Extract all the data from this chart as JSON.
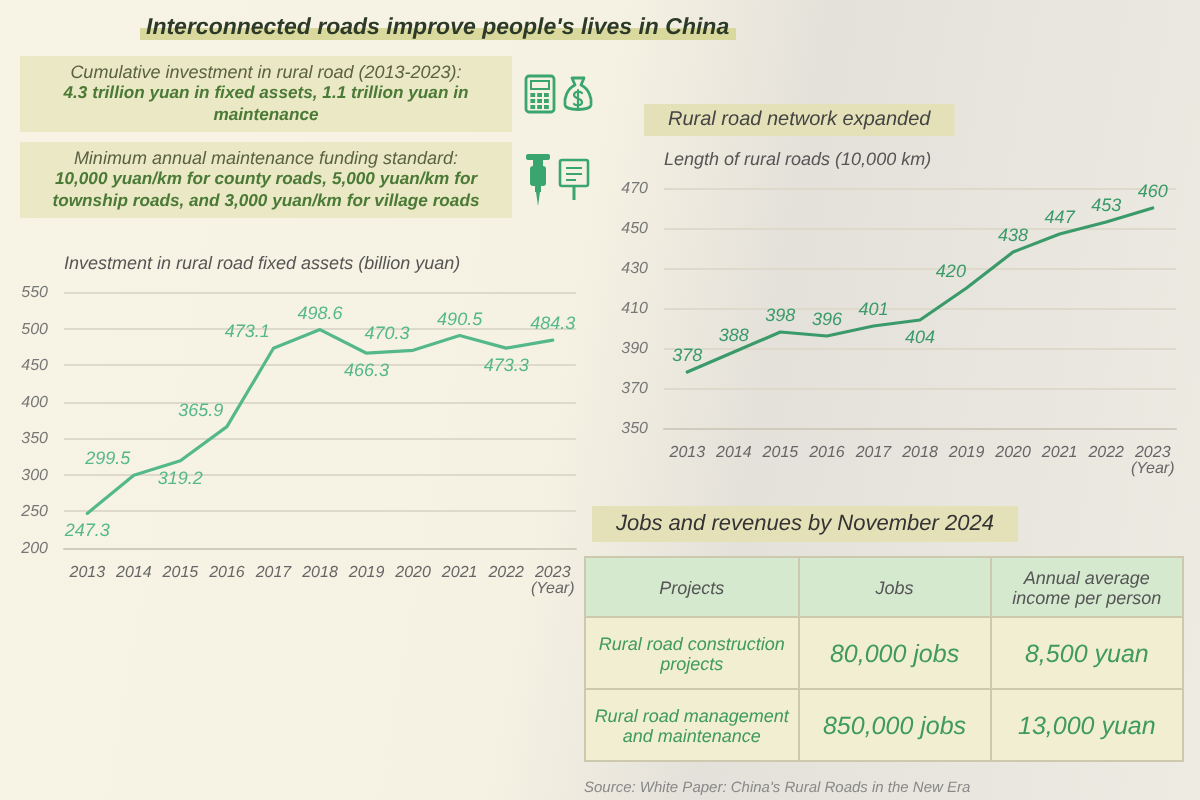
{
  "chart_data": [
    {
      "type": "other",
      "title": "Interconnected roads improve people's lives in China",
      "annotations": [
        "Cumulative investment in rural road (2013-2023):",
        "4.3 trillion yuan in fixed assets, 1.1 trillion yuan in maintenance",
        "Minimum annual maintenance funding standard:",
        "10,000 yuan/km for county roads, 5,000 yuan/km for township roads, and 3,000 yuan/km for village roads"
      ]
    },
    {
      "type": "line",
      "ylabel": "Investment in rural road fixed assets (billion yuan)",
      "xlabel": "(Year)",
      "categories": [
        "2013",
        "2014",
        "2015",
        "2016",
        "2017",
        "2018",
        "2019",
        "2020",
        "2021",
        "2022",
        "2023"
      ],
      "series": [
        {
          "color": "#55b88a",
          "values": [
            247.3,
            299.5,
            319.2,
            365.9,
            473.1,
            498.6,
            466.3,
            470.3,
            490.5,
            473.3,
            484.3
          ]
        }
      ],
      "ylim": [
        200,
        550
      ],
      "yticks": [
        200,
        250,
        300,
        350,
        400,
        450,
        500,
        550
      ],
      "grid": "y",
      "data_labels": true,
      "marker": "none"
    },
    {
      "type": "line",
      "title": "Rural road network expanded",
      "ylabel": "Length of rural roads (10,000 km)",
      "xlabel": "(Year)",
      "categories": [
        "2013",
        "2014",
        "2015",
        "2016",
        "2017",
        "2018",
        "2019",
        "2020",
        "2021",
        "2022",
        "2023"
      ],
      "series": [
        {
          "color": "#3a9a6a",
          "values": [
            378,
            388,
            398,
            396,
            401,
            404,
            420,
            438,
            447,
            453,
            460
          ]
        }
      ],
      "ylim": [
        350,
        470
      ],
      "yticks": [
        350,
        370,
        390,
        410,
        430,
        450,
        470
      ],
      "grid": "y",
      "data_labels": true,
      "marker": "none"
    },
    {
      "type": "other",
      "title": "Jobs and revenues by November 2024",
      "categories": [
        "Projects",
        "Jobs",
        "Annual average income per person"
      ],
      "y_categories": [
        "Rural road construction projects",
        "Rural road management and maintenance"
      ],
      "cell_labels": [
        [
          "80,000 jobs",
          "8,500 yuan"
        ],
        [
          "850,000 jobs",
          "13,000 yuan"
        ]
      ],
      "annotations": [
        "Source: White Paper: China's Rural Roads in the New Era"
      ]
    }
  ]
}
